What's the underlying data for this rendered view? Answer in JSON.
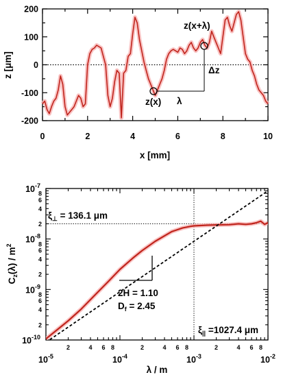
{
  "chart_data": [
    {
      "type": "line",
      "xlabel": "x [mm]",
      "ylabel": "z [μm]",
      "xlim": [
        0,
        10
      ],
      "ylim": [
        -200,
        200
      ],
      "x_ticks": [
        "0",
        "2",
        "4",
        "6",
        "8",
        "10"
      ],
      "y_ticks": [
        "200",
        "100",
        "0",
        "-100",
        "-200"
      ],
      "grid": false,
      "reference_line": {
        "y": 0,
        "style": "dotted"
      },
      "series": [
        {
          "color": "#c0241c",
          "x": [
            0.0,
            0.1,
            0.2,
            0.3,
            0.4,
            0.5,
            0.6,
            0.7,
            0.8,
            0.9,
            1.0,
            1.1,
            1.2,
            1.3,
            1.4,
            1.5,
            1.6,
            1.7,
            1.8,
            1.9,
            2.0,
            2.1,
            2.2,
            2.3,
            2.4,
            2.5,
            2.6,
            2.7,
            2.8,
            2.9,
            3.0,
            3.1,
            3.2,
            3.3,
            3.4,
            3.5,
            3.6,
            3.7,
            3.8,
            3.9,
            4.0,
            4.1,
            4.2,
            4.3,
            4.4,
            4.5,
            4.6,
            4.7,
            4.8,
            4.9,
            5.0,
            5.1,
            5.2,
            5.3,
            5.4,
            5.5,
            5.6,
            5.7,
            5.8,
            5.9,
            6.0,
            6.1,
            6.2,
            6.3,
            6.4,
            6.5,
            6.6,
            6.7,
            6.8,
            6.9,
            7.0,
            7.1,
            7.2,
            7.3,
            7.4,
            7.5,
            7.6,
            7.7,
            7.8,
            7.9,
            8.0,
            8.1,
            8.2,
            8.3,
            8.4,
            8.5,
            8.6,
            8.7,
            8.8,
            8.9,
            9.0,
            9.1,
            9.2,
            9.3,
            9.4,
            9.5,
            9.6,
            9.7,
            9.8,
            9.9,
            10.0
          ],
          "y": [
            -140,
            -130,
            -160,
            -175,
            -150,
            -130,
            -120,
            -90,
            -40,
            -70,
            -150,
            -180,
            -170,
            -160,
            -150,
            -130,
            -110,
            -120,
            -150,
            -140,
            0,
            40,
            55,
            60,
            70,
            65,
            60,
            30,
            0,
            -110,
            -150,
            -120,
            -60,
            -20,
            -30,
            -190,
            -30,
            -20,
            30,
            40,
            110,
            170,
            150,
            90,
            50,
            10,
            -20,
            -50,
            -70,
            -90,
            -110,
            -90,
            -70,
            -50,
            -20,
            20,
            40,
            50,
            55,
            50,
            45,
            60,
            55,
            40,
            50,
            70,
            80,
            60,
            50,
            60,
            80,
            90,
            70,
            60,
            80,
            120,
            100,
            80,
            60,
            40,
            100,
            160,
            170,
            140,
            120,
            150,
            180,
            190,
            160,
            100,
            40,
            20,
            10,
            -20,
            -40,
            -70,
            -90,
            -100,
            -110,
            -130,
            -140
          ]
        }
      ],
      "annotations": [
        "z(x+λ)",
        "z(x)",
        "λ",
        "Δz"
      ]
    },
    {
      "type": "line",
      "scale": "log-log",
      "xlabel": "λ / m",
      "ylabel": "Cz(λ) / m²",
      "xlim": [
        1e-05,
        0.01
      ],
      "ylim": [
        1e-10,
        1e-07
      ],
      "x_ticks": [
        "10-5",
        "10-4",
        "10-3",
        "10-2"
      ],
      "y_ticks": [
        "10-10",
        "10-9",
        "10-8",
        "10-7"
      ],
      "minor_tick_labels": [
        "2",
        "4",
        "6",
        "8"
      ],
      "grid": false,
      "series": [
        {
          "color": "#c0241c",
          "x": [
            1e-05,
            1.5e-05,
            2e-05,
            3e-05,
            5e-05,
            7e-05,
            0.0001,
            0.00015,
            0.0002,
            0.0003,
            0.0005,
            0.0007,
            0.0008,
            0.0009,
            0.001,
            0.0015,
            0.002,
            0.003,
            0.004,
            0.005,
            0.006,
            0.007,
            0.008,
            0.009,
            0.01
          ],
          "y": [
            1.05e-10,
            1.7e-10,
            2.4e-10,
            4.1e-10,
            8.8e-10,
            1.45e-09,
            2.5e-09,
            4.2e-09,
            5.9e-09,
            9e-09,
            1.4e-08,
            1.65e-08,
            1.72e-08,
            1.78e-08,
            1.82e-08,
            1.88e-08,
            1.9e-08,
            1.92e-08,
            2e-08,
            1.95e-08,
            2e-08,
            2.1e-08,
            2.25e-08,
            1.95e-08,
            2.1e-08
          ]
        },
        {
          "style": "dashed",
          "x": [
            1e-05,
            0.01
          ],
          "y": [
            9e-11,
            9e-08
          ]
        }
      ],
      "reference_lines": [
        {
          "x": 0.001,
          "style": "dotted"
        },
        {
          "y": 2e-08,
          "style": "dotted"
        }
      ],
      "annotations": {
        "xi_perp": "ξ⊥ = 136.1 μm",
        "xi_par": "ξ|| =1027.4 μm",
        "two_h": "2H = 1.10",
        "df": "Df = 2.45"
      }
    }
  ]
}
